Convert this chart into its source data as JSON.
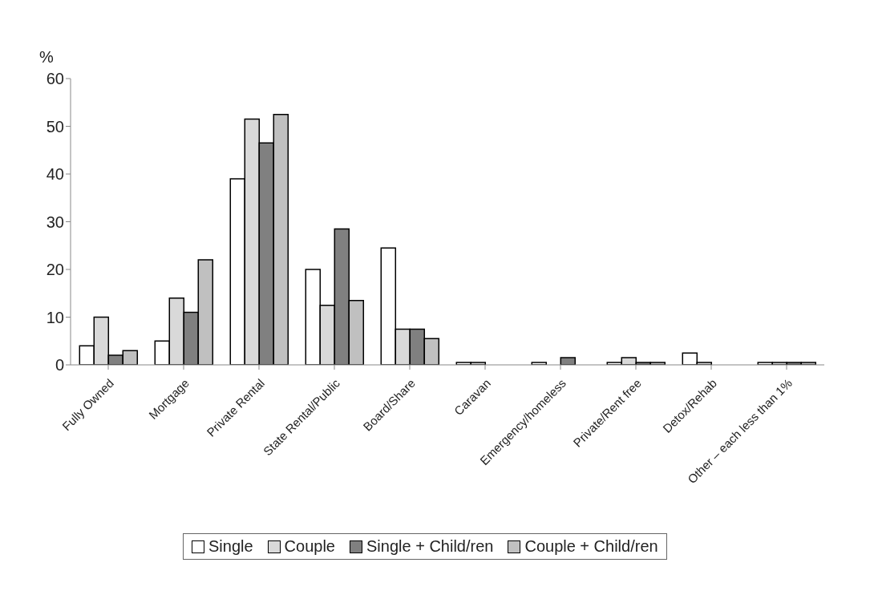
{
  "chart_data": {
    "type": "bar",
    "ylabel": "%",
    "categories": [
      "Fully Owned",
      "Mortgage",
      "Private Rental",
      "State Rental/Public",
      "Board/Share",
      "Caravan",
      "Emergency/homeless",
      "Private/Rent free",
      "Detox/Rehab",
      "Other – each less than 1%"
    ],
    "series": [
      {
        "name": "Single",
        "color": "#ffffff",
        "values": [
          4,
          5,
          39,
          20,
          24.5,
          0.5,
          0.5,
          0.5,
          2.5,
          0.5
        ]
      },
      {
        "name": "Couple",
        "color": "#d9d9d9",
        "values": [
          10,
          14,
          51.5,
          12.5,
          7.5,
          0.5,
          null,
          1.5,
          0.5,
          0.5
        ]
      },
      {
        "name": "Single + Child/ren",
        "color": "#808080",
        "values": [
          2,
          11,
          46.5,
          28.5,
          7.5,
          null,
          1.5,
          0.5,
          null,
          0.5
        ]
      },
      {
        "name": "Couple + Child/ren",
        "color": "#c0c0c0",
        "values": [
          3,
          22,
          52.5,
          13.5,
          5.5,
          null,
          null,
          0.5,
          null,
          0.5
        ]
      }
    ],
    "ylim": [
      0,
      60
    ],
    "yticks": [
      0,
      10,
      20,
      30,
      40,
      50,
      60
    ],
    "grid": false,
    "legend": "bottom"
  }
}
